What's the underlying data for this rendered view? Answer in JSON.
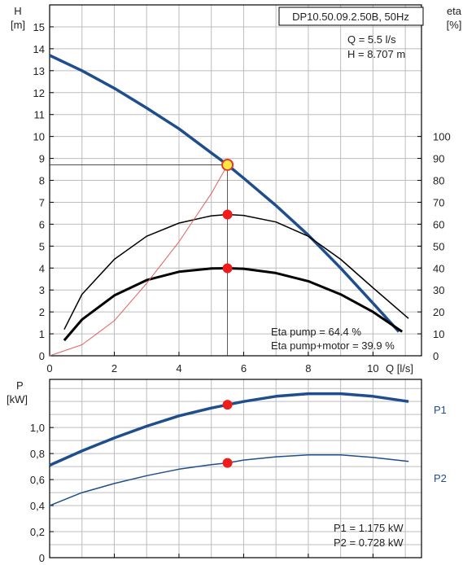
{
  "chart_data": [
    {
      "type": "line",
      "panel": "top",
      "title": "DP10.50.09.2.50B, 50Hz",
      "operating_point": {
        "q_text": "Q = 5.5 l/s",
        "h_text": "H = 8.707 m",
        "q": 5.5,
        "h": 8.707
      },
      "xlabel": "Q [l/s]",
      "ylabel_left_name": "H",
      "ylabel_left_unit": "[m]",
      "ylabel_right_name": "eta",
      "ylabel_right_unit": "[%]",
      "xlim": [
        0,
        11.5
      ],
      "ylim_left": [
        0,
        16
      ],
      "ylim_right": [
        0,
        160
      ],
      "x_ticks": [
        0,
        2,
        4,
        6,
        8,
        10
      ],
      "y_left_ticks": [
        0,
        1,
        2,
        3,
        4,
        5,
        6,
        7,
        8,
        9,
        10,
        11,
        12,
        13,
        14,
        15
      ],
      "y_right_ticks": [
        0,
        10,
        20,
        30,
        40,
        50,
        60,
        70,
        80,
        90,
        100
      ],
      "grid": true,
      "series": [
        {
          "key": "head",
          "axis": "left",
          "color": "#1f4e8c",
          "width": 3.5,
          "x": [
            0,
            1,
            2,
            3,
            4,
            5,
            5.5,
            6,
            7,
            8,
            9,
            10,
            10.8
          ],
          "y": [
            13.7,
            13.0,
            12.2,
            11.3,
            10.35,
            9.25,
            8.707,
            8.1,
            6.85,
            5.5,
            4.0,
            2.4,
            1.1
          ]
        },
        {
          "key": "eta_pump",
          "axis": "right",
          "color": "#000000",
          "width": 1.5,
          "x": [
            0.45,
            1,
            2,
            3,
            4,
            5,
            5.5,
            6,
            7,
            8,
            9,
            10,
            11.1
          ],
          "y": [
            12,
            28,
            44,
            54.5,
            60.5,
            63.8,
            64.4,
            64.0,
            61.0,
            54.5,
            44,
            31,
            17
          ]
        },
        {
          "key": "eta_pump_motor",
          "axis": "right",
          "color": "#000000",
          "width": 3,
          "x": [
            0.45,
            1,
            2,
            3,
            4,
            5,
            5.5,
            6,
            7,
            8,
            9,
            10,
            10.9
          ],
          "y": [
            7,
            16.5,
            27.5,
            34.5,
            38.3,
            39.8,
            39.9,
            39.7,
            37.7,
            34.0,
            28,
            20,
            11
          ]
        },
        {
          "key": "npsh",
          "axis": "left",
          "color": "#e06060",
          "width": 1,
          "x": [
            0,
            1,
            2,
            3,
            4,
            5,
            5.5
          ],
          "y": [
            0,
            0.5,
            1.6,
            3.3,
            5.2,
            7.4,
            8.7
          ]
        }
      ],
      "markers": [
        {
          "axis": "left",
          "x": 5.5,
          "y": 8.707,
          "style": "yellow"
        },
        {
          "axis": "right",
          "x": 5.5,
          "y": 64.4,
          "style": "red"
        },
        {
          "axis": "right",
          "x": 5.5,
          "y": 39.9,
          "style": "red"
        }
      ],
      "annotations": [
        "Eta pump = 64.4 %",
        "Eta pump+motor = 39.9 %"
      ]
    },
    {
      "type": "line",
      "panel": "bottom",
      "ylabel_name": "P",
      "ylabel_unit": "[kW]",
      "xlim": [
        0,
        11.5
      ],
      "ylim": [
        0,
        1.37
      ],
      "x_ticks": [
        0,
        2,
        4,
        6,
        8,
        10
      ],
      "y_ticks": [
        0,
        0.2,
        0.4,
        0.6,
        0.8,
        1.0
      ],
      "y_tick_labels": [
        "0",
        "0,2",
        "0,4",
        "0,6",
        "0,8",
        "1,0"
      ],
      "grid": true,
      "series": [
        {
          "name": "P1",
          "color": "#1f4e8c",
          "width": 3.5,
          "x": [
            0,
            1,
            2,
            3,
            4,
            5,
            5.5,
            6,
            7,
            8,
            9,
            10,
            11.1
          ],
          "y": [
            0.71,
            0.82,
            0.92,
            1.01,
            1.09,
            1.15,
            1.175,
            1.2,
            1.24,
            1.26,
            1.26,
            1.24,
            1.2
          ]
        },
        {
          "name": "P2",
          "color": "#1f4e8c",
          "width": 1.5,
          "x": [
            0,
            1,
            2,
            3,
            4,
            5,
            5.5,
            6,
            7,
            8,
            9,
            10,
            11.1
          ],
          "y": [
            0.4,
            0.5,
            0.57,
            0.63,
            0.68,
            0.715,
            0.728,
            0.75,
            0.775,
            0.79,
            0.79,
            0.77,
            0.74
          ]
        }
      ],
      "markers": [
        {
          "x": 5.5,
          "y": 1.175,
          "style": "red"
        },
        {
          "x": 5.5,
          "y": 0.728,
          "style": "red"
        }
      ],
      "annotations": [
        "P1 = 1.175 kW",
        "P2 = 0.728 kW"
      ]
    }
  ]
}
